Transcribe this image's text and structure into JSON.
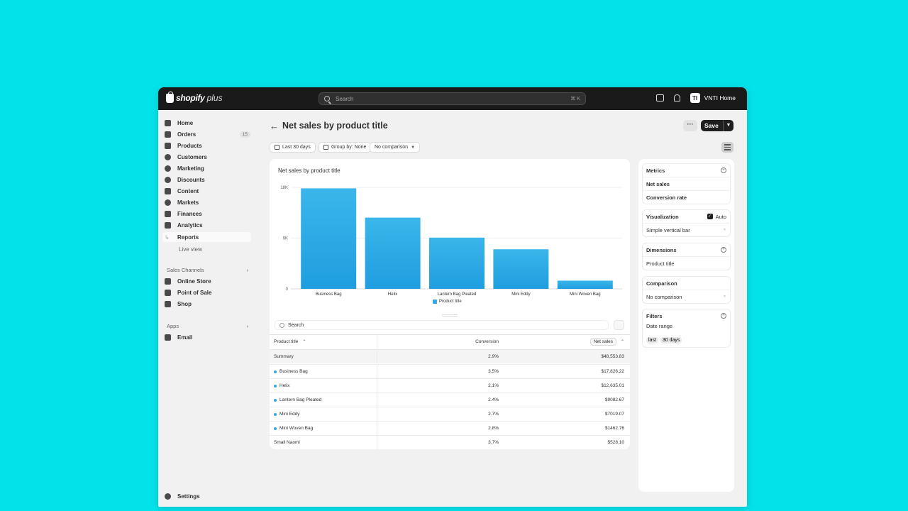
{
  "topbar": {
    "logo_text": "shopify",
    "logo_plus": "plus",
    "search_placeholder": "Search",
    "search_shortcut": "⌘ K",
    "store_initials": "TI",
    "store_name": "VNTI Home"
  },
  "sidebar": {
    "items": [
      {
        "label": "Home",
        "icon": "home-icon"
      },
      {
        "label": "Orders",
        "icon": "orders-icon",
        "badge": "15"
      },
      {
        "label": "Products",
        "icon": "tag-icon"
      },
      {
        "label": "Customers",
        "icon": "person-icon"
      },
      {
        "label": "Marketing",
        "icon": "target-icon"
      },
      {
        "label": "Discounts",
        "icon": "discount-icon"
      },
      {
        "label": "Content",
        "icon": "content-icon"
      },
      {
        "label": "Markets",
        "icon": "globe-icon"
      },
      {
        "label": "Finances",
        "icon": "bank-icon"
      },
      {
        "label": "Analytics",
        "icon": "chart-icon"
      }
    ],
    "sub_items": [
      "Reports",
      "Live view"
    ],
    "sales_channels_label": "Sales Channels",
    "sales_channels": [
      {
        "label": "Online Store",
        "icon": "store-icon"
      },
      {
        "label": "Point of Sale",
        "icon": "pos-icon"
      },
      {
        "label": "Shop",
        "icon": "shop-icon"
      }
    ],
    "apps_label": "Apps",
    "apps": [
      {
        "label": "Email",
        "icon": "email-icon"
      }
    ],
    "settings_label": "Settings"
  },
  "header": {
    "title": "Net sales by product title",
    "more_label": "···",
    "save_label": "Save"
  },
  "filters": {
    "date_range": "Last 30 days",
    "group_by": "Group by: None",
    "comparison": "No comparison"
  },
  "chart_data": {
    "type": "bar",
    "title": "Net sales by product title",
    "categories": [
      "Business Bag",
      "Helix",
      "Lantern Bag Pleated",
      "Mini Eddy",
      "Mini Woven Bag"
    ],
    "series": [
      {
        "name": "Product title",
        "values": [
          17826.22,
          12635.01,
          9082.67,
          7019.07,
          1462.76
        ]
      }
    ],
    "y_ticks": [
      "18K",
      "9K",
      "0"
    ],
    "ylim": [
      0,
      18000
    ],
    "grid": true,
    "legend": "bottom",
    "color": "#35a8e3"
  },
  "table": {
    "search_placeholder": "Search",
    "columns": [
      "Product title",
      "Conversion",
      "Net sales"
    ],
    "summary": {
      "label": "Summary",
      "conversion": "2.9%",
      "net_sales": "$48,553.83"
    },
    "rows": [
      {
        "title": "Business Bag",
        "conversion": "3.5%",
        "net_sales": "$17,826.22",
        "dot": true
      },
      {
        "title": "Helix",
        "conversion": "2.1%",
        "net_sales": "$12,635.01",
        "dot": true
      },
      {
        "title": "Lantern Bag Pleated",
        "conversion": "2.4%",
        "net_sales": "$9082.67",
        "dot": true
      },
      {
        "title": "Mini Eddy",
        "conversion": "2.7%",
        "net_sales": "$7019.07",
        "dot": true
      },
      {
        "title": "Mini Woven Bag",
        "conversion": "2.8%",
        "net_sales": "$1462.76",
        "dot": true
      },
      {
        "title": "Small Naomi",
        "conversion": "3.7%",
        "net_sales": "$528.10",
        "dot": false
      }
    ]
  },
  "panel": {
    "metrics_label": "Metrics",
    "metrics": [
      "Net sales",
      "Conversion rate"
    ],
    "visualization_label": "Visualization",
    "auto_label": "Auto",
    "visualization_value": "Simple vertical bar",
    "dimensions_label": "Dimensions",
    "dimension_value": "Product title",
    "comparison_label": "Comparison",
    "comparison_value": "No comparison",
    "filters_label": "Filters",
    "filter_name": "Date range",
    "filter_pills": [
      "last",
      "30 days"
    ]
  }
}
